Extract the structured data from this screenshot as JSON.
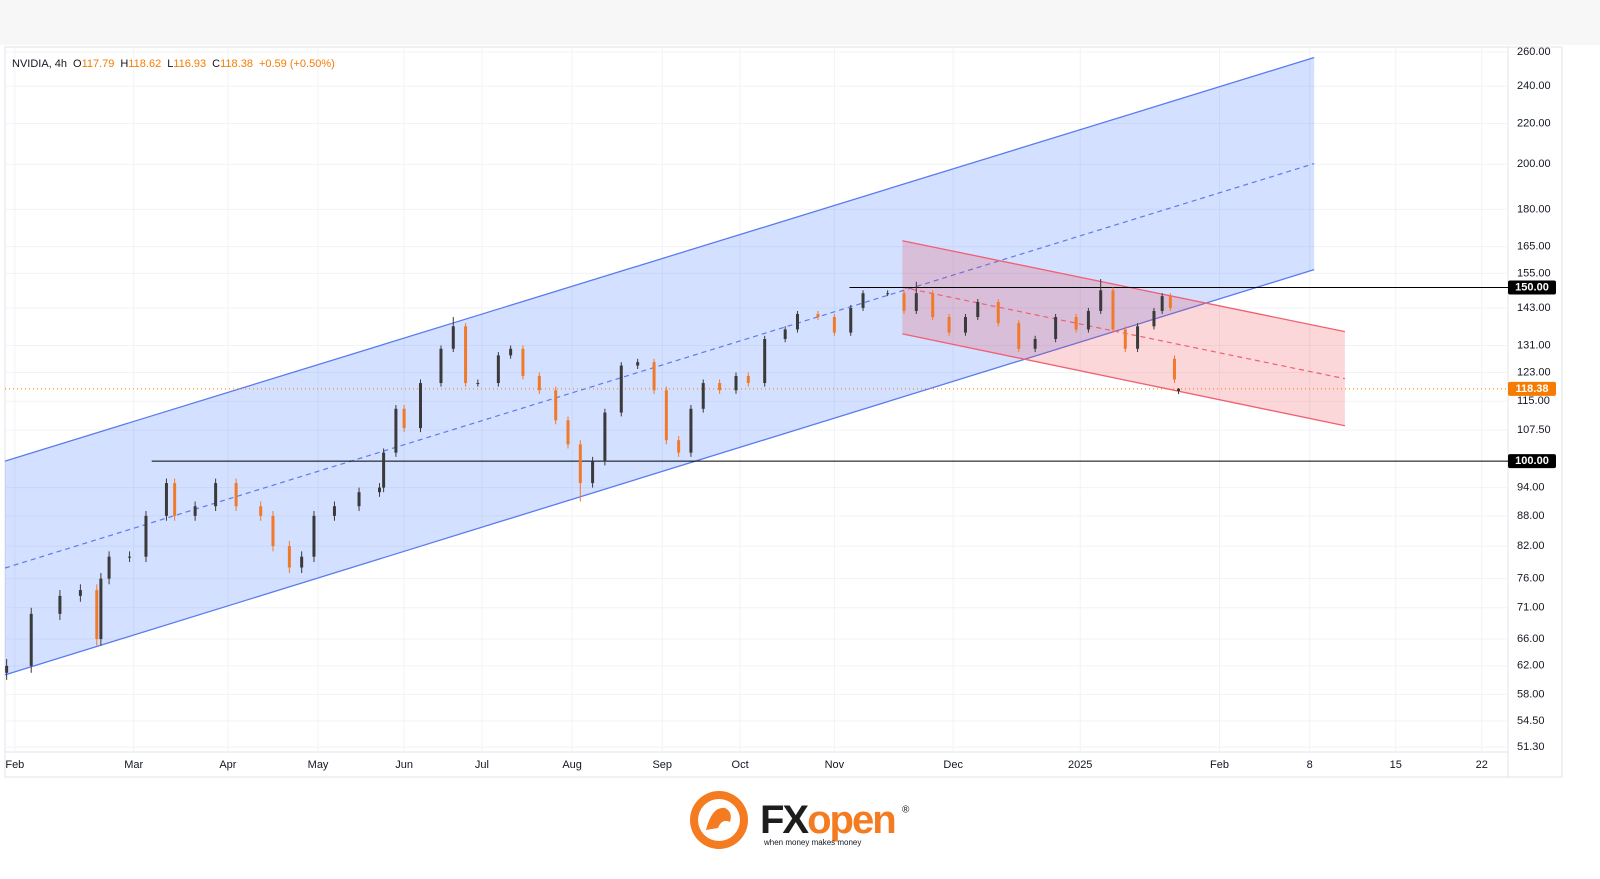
{
  "chart_data": {
    "type": "candlestick",
    "symbol": "NVIDIA, 4h",
    "ohlc_labels": [
      "O",
      "H",
      "L",
      "C"
    ],
    "ohlc": [
      117.79,
      118.62,
      116.93,
      118.38
    ],
    "change": "+0.59 (+0.50%)",
    "log_scale": true,
    "grid": true,
    "up_color": "#3a3a3a",
    "down_color": "#f07a2a",
    "xlim": [
      -2.4,
      364.4
    ],
    "ylim": [
      50.7,
      263
    ],
    "xticks": [
      {
        "value": 0,
        "label": "Feb"
      },
      {
        "value": 29,
        "label": "Mar"
      },
      {
        "value": 52,
        "label": "Apr"
      },
      {
        "value": 74,
        "label": "May"
      },
      {
        "value": 95,
        "label": "Jun"
      },
      {
        "value": 114,
        "label": "Jul"
      },
      {
        "value": 136,
        "label": "Aug"
      },
      {
        "value": 158,
        "label": "Sep"
      },
      {
        "value": 177,
        "label": "Oct"
      },
      {
        "value": 200,
        "label": "Nov"
      },
      {
        "value": 229,
        "label": "Dec"
      },
      {
        "value": 260,
        "label": "2025"
      },
      {
        "value": 294,
        "label": "Feb"
      },
      {
        "value": 316,
        "label": "8"
      },
      {
        "value": 337,
        "label": "15"
      },
      {
        "value": 358,
        "label": "22"
      }
    ],
    "yticks": [
      {
        "value": 51.3,
        "label": "51.30"
      },
      {
        "value": 54.5,
        "label": "54.50"
      },
      {
        "value": 58,
        "label": "58.00"
      },
      {
        "value": 62,
        "label": "62.00"
      },
      {
        "value": 66,
        "label": "66.00"
      },
      {
        "value": 71,
        "label": "71.00"
      },
      {
        "value": 76,
        "label": "76.00"
      },
      {
        "value": 82,
        "label": "82.00"
      },
      {
        "value": 88,
        "label": "88.00"
      },
      {
        "value": 94,
        "label": "94.00"
      },
      {
        "value": 107.5,
        "label": "107.50"
      },
      {
        "value": 115,
        "label": "115.00"
      },
      {
        "value": 123,
        "label": "123.00"
      },
      {
        "value": 131,
        "label": "131.00"
      },
      {
        "value": 143,
        "label": "143.00"
      },
      {
        "value": 155,
        "label": "155.00"
      },
      {
        "value": 165,
        "label": "165.00"
      },
      {
        "value": 180,
        "label": "180.00"
      },
      {
        "value": 200,
        "label": "200.00"
      },
      {
        "value": 220,
        "label": "220.00"
      },
      {
        "value": 240,
        "label": "240.00"
      },
      {
        "value": 260,
        "label": "260.00"
      }
    ],
    "x": [
      -2,
      4,
      11,
      16,
      20,
      21,
      23,
      28,
      32,
      37,
      39,
      44,
      49,
      54,
      60,
      63,
      67,
      70,
      73,
      78,
      84,
      89,
      90,
      93,
      95,
      99,
      104,
      107,
      110,
      113,
      118,
      121,
      124,
      128,
      132,
      135,
      138,
      141,
      144,
      148,
      152,
      156,
      159,
      162,
      165,
      168,
      172,
      176,
      179,
      183,
      188,
      191,
      196,
      200,
      204,
      207,
      213,
      217,
      220,
      224,
      228,
      232,
      235,
      240,
      245,
      249,
      254,
      259,
      262,
      265,
      268,
      271,
      274,
      278,
      280,
      282,
      283,
      284
    ],
    "open": [
      61,
      62,
      70,
      73,
      74,
      66,
      76,
      80,
      80,
      88,
      95,
      88,
      90,
      95,
      90,
      88,
      82,
      78,
      80,
      88,
      90,
      93,
      94,
      102,
      113,
      108,
      120,
      130,
      137,
      120,
      120,
      128,
      130,
      122,
      118,
      110,
      104,
      95,
      100,
      112,
      125,
      126,
      118,
      105,
      102,
      113,
      120,
      118,
      122,
      120,
      133,
      136,
      141,
      140,
      135,
      143,
      148,
      148,
      142,
      148,
      140,
      135,
      140,
      145,
      138,
      130,
      133,
      140,
      136,
      142,
      149,
      136,
      130,
      137,
      142,
      147,
      127,
      117.79
    ],
    "high": [
      63,
      71,
      74,
      75,
      75,
      77,
      81,
      81,
      89,
      96,
      96,
      91,
      96,
      96,
      91,
      89,
      83,
      81,
      89,
      91,
      94,
      95,
      103,
      114,
      114,
      121,
      131,
      140,
      138,
      121,
      129,
      131,
      131,
      123,
      119,
      111,
      105,
      101,
      113,
      126,
      127,
      127,
      119,
      106,
      114,
      121,
      121,
      123,
      123,
      134,
      137,
      142,
      142,
      141,
      144,
      149,
      149,
      149,
      152,
      149,
      141,
      141,
      146,
      146,
      139,
      134,
      141,
      141,
      143,
      153,
      150,
      137,
      138,
      143,
      148,
      148,
      128,
      118.62
    ],
    "low": [
      60,
      61,
      69,
      72,
      65,
      65,
      75,
      79,
      79,
      87,
      87,
      87,
      89,
      89,
      87,
      81,
      77,
      77,
      79,
      87,
      89,
      92,
      93,
      101,
      107,
      107,
      119,
      129,
      119,
      119,
      119,
      127,
      121,
      117,
      109,
      103,
      91,
      94,
      99,
      111,
      124,
      117,
      104,
      101,
      101,
      112,
      117,
      117,
      119,
      119,
      132,
      135,
      139,
      134,
      134,
      142,
      147,
      141,
      141,
      139,
      134,
      134,
      139,
      137,
      129,
      129,
      132,
      135,
      135,
      141,
      135,
      129,
      129,
      136,
      141,
      142,
      120,
      116.93
    ],
    "close": [
      62,
      70,
      73,
      74,
      66,
      76,
      80,
      80,
      88,
      95,
      88,
      90,
      95,
      90,
      88,
      82,
      78,
      80,
      88,
      90,
      93,
      94,
      102,
      113,
      108,
      120,
      130,
      137,
      120,
      120,
      128,
      130,
      122,
      118,
      110,
      104,
      95,
      100,
      112,
      125,
      126,
      118,
      105,
      102,
      113,
      120,
      118,
      122,
      120,
      133,
      136,
      141,
      140,
      135,
      143,
      148,
      148,
      142,
      148,
      140,
      135,
      140,
      145,
      138,
      130,
      133,
      140,
      136,
      142,
      149,
      136,
      130,
      137,
      142,
      147,
      143,
      121,
      118.38
    ],
    "channels": [
      {
        "color": "#5b7cf0",
        "fill": "rgba(41,98,255,0.2)",
        "upper": [
          [
            -2.4,
            100
          ],
          [
            317.1,
            256.6
          ]
        ],
        "lower": [
          [
            -2.4,
            60.7
          ],
          [
            317.1,
            156.4
          ]
        ]
      },
      {
        "color": "#f06070",
        "fill": "rgba(242,54,69,0.2)",
        "upper": [
          [
            216.6,
            167.3
          ],
          [
            324.6,
            135.3
          ]
        ],
        "lower": [
          [
            216.6,
            134.6
          ],
          [
            324.6,
            108.6
          ]
        ]
      }
    ],
    "levels": [
      {
        "value": 150,
        "label": "150.00",
        "from": 203.7,
        "color": "#000000"
      },
      {
        "value": 100,
        "label": "100.00",
        "from": 33.4,
        "color": "#000000"
      }
    ],
    "last_price": {
      "value": 118.38,
      "label": "118.38",
      "color": "#f57c00"
    }
  },
  "footer": {
    "brand_prefix": "FX",
    "brand_suffix": "open",
    "registered": "®",
    "tagline": "when money makes money"
  }
}
